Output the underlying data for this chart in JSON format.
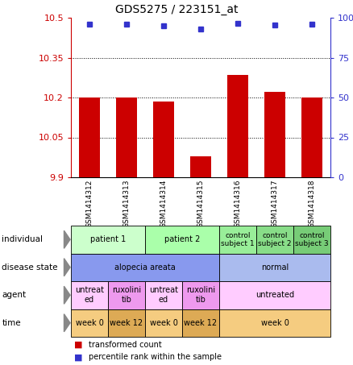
{
  "title": "GDS5275 / 223151_at",
  "samples": [
    "GSM1414312",
    "GSM1414313",
    "GSM1414314",
    "GSM1414315",
    "GSM1414316",
    "GSM1414317",
    "GSM1414318"
  ],
  "bar_values": [
    10.2,
    10.2,
    10.185,
    9.98,
    10.285,
    10.22,
    10.2
  ],
  "dot_values": [
    96,
    96,
    95,
    93,
    96.5,
    95.5,
    96
  ],
  "ylim_left": [
    9.9,
    10.5
  ],
  "ylim_right": [
    0,
    100
  ],
  "yticks_left": [
    9.9,
    10.05,
    10.2,
    10.35,
    10.5
  ],
  "yticks_right": [
    0,
    25,
    50,
    75,
    100
  ],
  "ytick_labels_left": [
    "9.9",
    "10.05",
    "10.2",
    "10.35",
    "10.5"
  ],
  "ytick_labels_right": [
    "0",
    "25",
    "50",
    "75",
    "100%"
  ],
  "bar_color": "#cc0000",
  "dot_color": "#3333cc",
  "individual_row": {
    "cells": [
      {
        "text": "patient 1",
        "span": [
          0,
          2
        ],
        "color": "#ccffcc"
      },
      {
        "text": "patient 2",
        "span": [
          2,
          4
        ],
        "color": "#aaffaa"
      },
      {
        "text": "control\nsubject 1",
        "span": [
          4,
          5
        ],
        "color": "#99ee99"
      },
      {
        "text": "control\nsubject 2",
        "span": [
          5,
          6
        ],
        "color": "#88dd88"
      },
      {
        "text": "control\nsubject 3",
        "span": [
          6,
          7
        ],
        "color": "#77cc77"
      }
    ]
  },
  "disease_state_row": {
    "cells": [
      {
        "text": "alopecia areata",
        "span": [
          0,
          4
        ],
        "color": "#8899ee"
      },
      {
        "text": "normal",
        "span": [
          4,
          7
        ],
        "color": "#aabbee"
      }
    ]
  },
  "agent_row": {
    "cells": [
      {
        "text": "untreat\ned",
        "span": [
          0,
          1
        ],
        "color": "#ffccff"
      },
      {
        "text": "ruxolini\ntib",
        "span": [
          1,
          2
        ],
        "color": "#ee99ee"
      },
      {
        "text": "untreat\ned",
        "span": [
          2,
          3
        ],
        "color": "#ffccff"
      },
      {
        "text": "ruxolini\ntib",
        "span": [
          3,
          4
        ],
        "color": "#ee99ee"
      },
      {
        "text": "untreated",
        "span": [
          4,
          7
        ],
        "color": "#ffccff"
      }
    ]
  },
  "time_row": {
    "cells": [
      {
        "text": "week 0",
        "span": [
          0,
          1
        ],
        "color": "#f5cc80"
      },
      {
        "text": "week 12",
        "span": [
          1,
          2
        ],
        "color": "#ddaa55"
      },
      {
        "text": "week 0",
        "span": [
          2,
          3
        ],
        "color": "#f5cc80"
      },
      {
        "text": "week 12",
        "span": [
          3,
          4
        ],
        "color": "#ddaa55"
      },
      {
        "text": "week 0",
        "span": [
          4,
          7
        ],
        "color": "#f5cc80"
      }
    ]
  },
  "row_labels": [
    "individual",
    "disease state",
    "agent",
    "time"
  ]
}
